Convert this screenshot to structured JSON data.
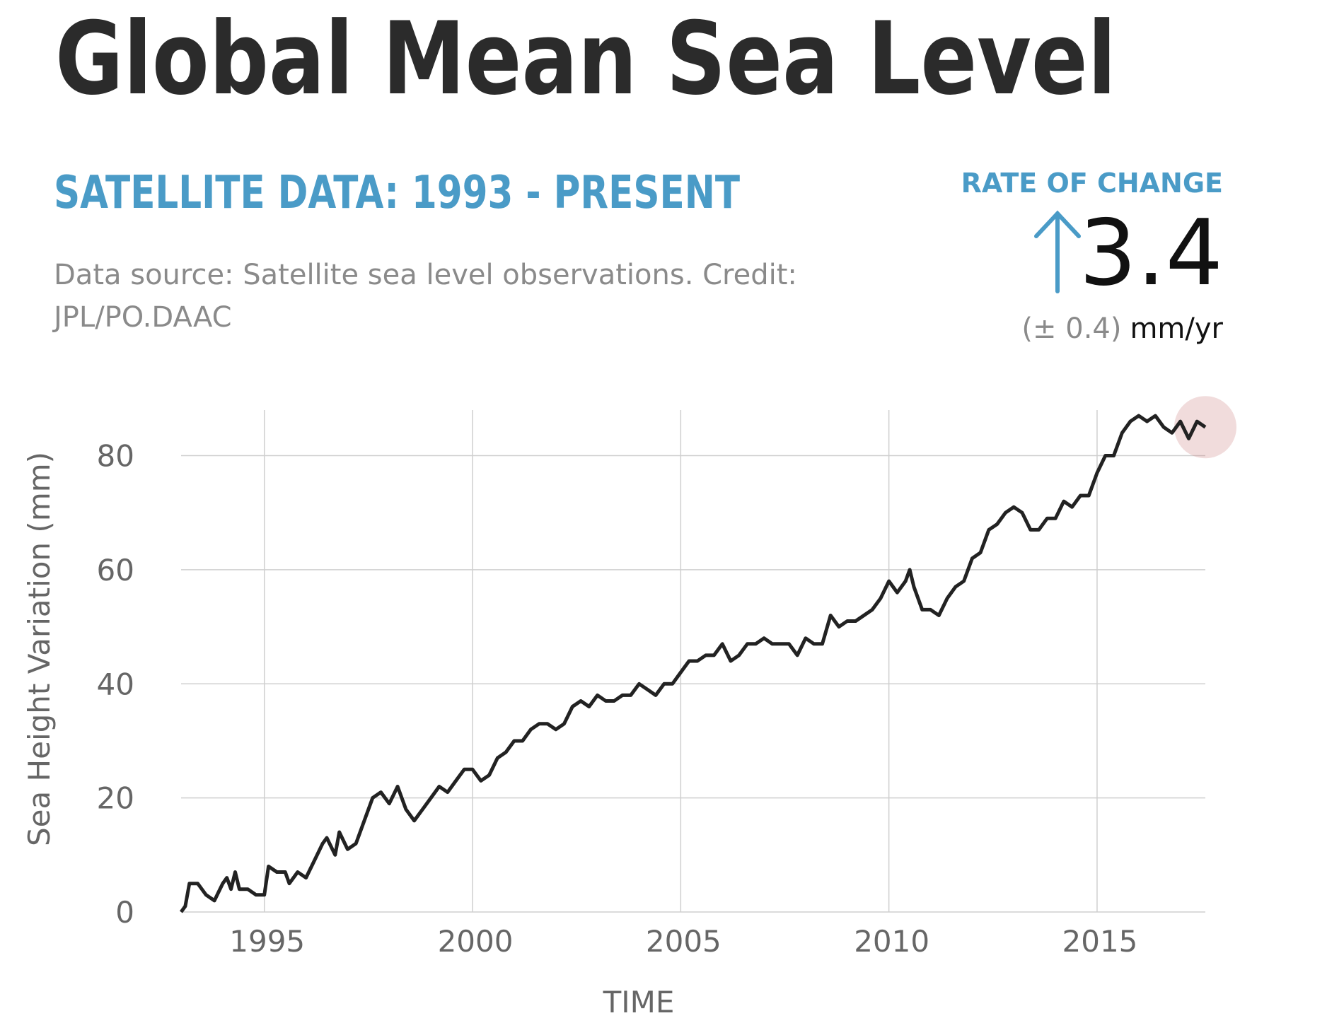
{
  "chart_data": {
    "type": "line",
    "title": "Global Mean Sea Level",
    "subtitle": "SATELLITE DATA: 1993 - PRESENT",
    "source": [
      "Data source: Satellite sea level observations. Credit:",
      "JPL/PO.DAAC"
    ],
    "rate": {
      "label": "RATE OF CHANGE",
      "value": 3.4,
      "uncertainty": "(± 0.4)",
      "unit": "mm/yr"
    },
    "xlabel": "TIME",
    "ylabel": "Sea Height Variation (mm)",
    "color": "#222222",
    "grid": true,
    "xlim": [
      1993,
      2017.6
    ],
    "ylim": [
      0,
      88
    ],
    "xticks": [
      1995,
      2000,
      2005,
      2010,
      2015
    ],
    "yticks": [
      0,
      20,
      40,
      60,
      80
    ],
    "x": [
      1993.0,
      1993.1,
      1993.2,
      1993.4,
      1993.6,
      1993.8,
      1994.0,
      1994.1,
      1994.2,
      1994.3,
      1994.4,
      1994.6,
      1994.8,
      1995.0,
      1995.1,
      1995.3,
      1995.5,
      1995.6,
      1995.8,
      1996.0,
      1996.2,
      1996.4,
      1996.5,
      1996.7,
      1996.8,
      1997.0,
      1997.2,
      1997.4,
      1997.6,
      1997.8,
      1998.0,
      1998.2,
      1998.4,
      1998.6,
      1998.8,
      1999.0,
      1999.2,
      1999.4,
      1999.6,
      1999.8,
      2000.0,
      2000.2,
      2000.4,
      2000.6,
      2000.8,
      2001.0,
      2001.2,
      2001.4,
      2001.6,
      2001.8,
      2002.0,
      2002.2,
      2002.4,
      2002.6,
      2002.8,
      2003.0,
      2003.2,
      2003.4,
      2003.6,
      2003.8,
      2004.0,
      2004.2,
      2004.4,
      2004.6,
      2004.8,
      2005.0,
      2005.2,
      2005.4,
      2005.6,
      2005.8,
      2006.0,
      2006.2,
      2006.4,
      2006.6,
      2006.8,
      2007.0,
      2007.2,
      2007.4,
      2007.6,
      2007.8,
      2008.0,
      2008.2,
      2008.4,
      2008.6,
      2008.8,
      2009.0,
      2009.2,
      2009.4,
      2009.6,
      2009.8,
      2010.0,
      2010.2,
      2010.4,
      2010.5,
      2010.6,
      2010.8,
      2011.0,
      2011.2,
      2011.4,
      2011.6,
      2011.8,
      2012.0,
      2012.2,
      2012.4,
      2012.6,
      2012.8,
      2013.0,
      2013.2,
      2013.4,
      2013.6,
      2013.8,
      2014.0,
      2014.2,
      2014.4,
      2014.6,
      2014.8,
      2015.0,
      2015.2,
      2015.4,
      2015.6,
      2015.8,
      2016.0,
      2016.2,
      2016.4,
      2016.6,
      2016.8,
      2017.0,
      2017.2,
      2017.4,
      2017.6
    ],
    "values": [
      0,
      1,
      5,
      5,
      3,
      2,
      5,
      6,
      4,
      7,
      4,
      4,
      3,
      3,
      8,
      7,
      7,
      5,
      7,
      6,
      9,
      12,
      13,
      10,
      14,
      11,
      12,
      16,
      20,
      21,
      19,
      22,
      18,
      16,
      18,
      20,
      22,
      21,
      23,
      25,
      25,
      23,
      24,
      27,
      28,
      30,
      30,
      32,
      33,
      33,
      32,
      33,
      36,
      37,
      36,
      38,
      37,
      37,
      38,
      38,
      40,
      39,
      38,
      40,
      40,
      42,
      44,
      44,
      45,
      45,
      47,
      44,
      45,
      47,
      47,
      48,
      47,
      47,
      47,
      45,
      48,
      47,
      47,
      52,
      50,
      51,
      51,
      52,
      53,
      55,
      58,
      56,
      58,
      60,
      57,
      53,
      53,
      52,
      55,
      57,
      58,
      62,
      63,
      67,
      68,
      70,
      71,
      70,
      67,
      67,
      69,
      69,
      72,
      71,
      73,
      73,
      77,
      80,
      80,
      84,
      86,
      87,
      86,
      87,
      85,
      84,
      86,
      83,
      86,
      85
    ]
  }
}
